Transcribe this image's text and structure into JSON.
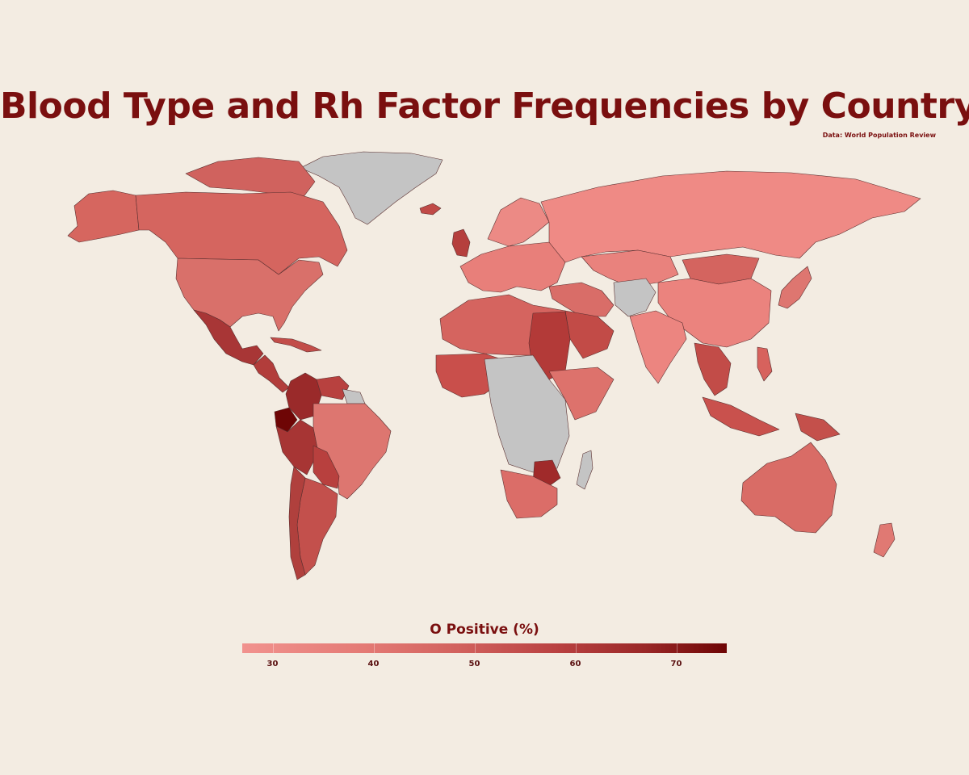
{
  "title": "Blood Type and Rh Factor Frequencies by Country",
  "source": "Data: World Population Review",
  "colors": {
    "background": "#f3ece2",
    "title": "#7a0f0f",
    "no_data": "#c4c4c4",
    "scale_low": "#f1928e",
    "scale_high": "#6e0505",
    "border": "#5a3030"
  },
  "legend": {
    "title": "O Positive (%)",
    "min": 27,
    "max": 75,
    "ticks": [
      {
        "value": 30,
        "label": "30"
      },
      {
        "value": 40,
        "label": "40"
      },
      {
        "value": 50,
        "label": "50"
      },
      {
        "value": 60,
        "label": "60"
      },
      {
        "value": 70,
        "label": "70"
      }
    ]
  }
}
